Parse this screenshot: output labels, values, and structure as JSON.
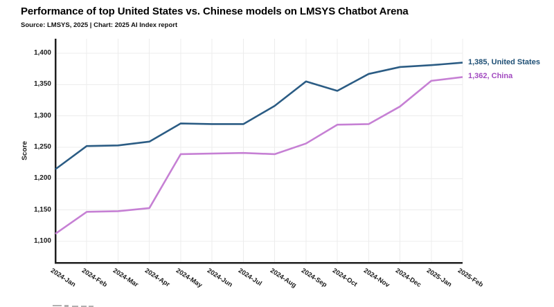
{
  "header": {
    "title": "Performance of top United States vs. Chinese models on LMSYS Chatbot Arena",
    "subtitle": "Source: LMSYS, 2025 | Chart: 2025 AI Index report"
  },
  "chart_data": {
    "type": "line",
    "title": "Performance of top United States vs. Chinese models on LMSYS Chatbot Arena",
    "xlabel": "",
    "ylabel": "Score",
    "x": [
      "2024-Jan",
      "2024-Feb",
      "2024-Mar",
      "2024-Apr",
      "2024-May",
      "2024-Jun",
      "2024-Jul",
      "2024-Aug",
      "2024-Sep",
      "2024-Oct",
      "2024-Nov",
      "2024-Dec",
      "2025-Jan",
      "2025-Feb"
    ],
    "yticks": [
      1100,
      1150,
      1200,
      1250,
      1300,
      1350,
      1400
    ],
    "ytick_labels": [
      "1,100",
      "1,150",
      "1,200",
      "1,250",
      "1,300",
      "1,350",
      "1,400"
    ],
    "ylim": [
      1062,
      1418
    ],
    "grid": true,
    "legend_position": "end-of-line",
    "series": [
      {
        "name": "United States",
        "end_label": "1,385, United States",
        "color": "#2b5c84",
        "label_color": "#1d4e74",
        "values": [
          1215,
          1252,
          1253,
          1259,
          1288,
          1287,
          1287,
          1316,
          1355,
          1340,
          1367,
          1378,
          1381,
          1385
        ]
      },
      {
        "name": "China",
        "end_label": "1,362, China",
        "color": "#c680d4",
        "label_color": "#a24ac0",
        "values": [
          1112,
          1147,
          1148,
          1153,
          1239,
          1240,
          1241,
          1239,
          1256,
          1286,
          1287,
          1315,
          1356,
          1362
        ]
      }
    ],
    "colors": {
      "axis": "#1f1f1f",
      "grid": "#ececec",
      "tick_text": "#1a1a1a"
    }
  },
  "artifacts": {
    "clipped_caption_visible": true
  }
}
